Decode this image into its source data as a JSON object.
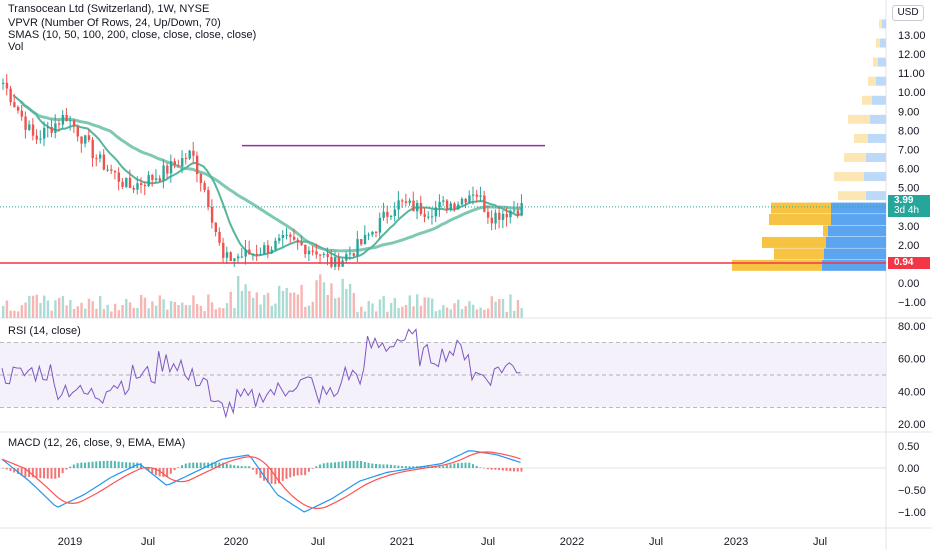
{
  "header": {
    "title": "Transocean Ltd (Switzerland), 1W, NYSE",
    "indicator_vpvr": "VPVR (Number Of Rows, 24, Up/Down, 70)",
    "indicator_smas": "SMAS (10, 50, 100, 200, close, close, close, close)",
    "indicator_vol": "Vol",
    "currency": "USD"
  },
  "price_axis": {
    "ticks": [
      "13.00",
      "12.00",
      "11.00",
      "10.00",
      "9.00",
      "8.00",
      "7.00",
      "6.00",
      "5.00",
      "4.00",
      "3.00",
      "2.00",
      "1.00",
      "0.00",
      "−1.00"
    ],
    "current_price": "3.99",
    "countdown": "3d 4h",
    "support_price": "0.94"
  },
  "rsi": {
    "label": "RSI (14, close)",
    "ticks": [
      "80.00",
      "60.00",
      "40.00",
      "20.00"
    ]
  },
  "macd": {
    "label": "MACD (12, 26, close, 9, EMA, EMA)",
    "ticks": [
      "0.50",
      "0.00",
      "−0.50",
      "−1.00"
    ]
  },
  "time_axis": {
    "labels": [
      "2019",
      "Jul",
      "2020",
      "Jul",
      "2021",
      "Jul",
      "2022",
      "Jul",
      "2023",
      "Jul"
    ]
  },
  "colors": {
    "up": "#26a69a",
    "down": "#ef5350",
    "sma_fast": "#58b59d",
    "sma_slow": "#7ec8b4",
    "resistance": "#9c27b0",
    "support": "#f23645",
    "rsi_line": "#7e57c2",
    "macd_line": "#2196f3",
    "signal_line": "#ff5252",
    "vpvr_up": "#5ba4f0",
    "vpvr_down": "#f6c342"
  },
  "chart_data": {
    "type": "line",
    "weekly_close_approx": [
      {
        "x": "2019-01",
        "y": 10.5
      },
      {
        "x": "2019-03",
        "y": 7.5
      },
      {
        "x": "2019-05",
        "y": 8.8
      },
      {
        "x": "2019-07",
        "y": 6.5
      },
      {
        "x": "2019-09",
        "y": 5.0
      },
      {
        "x": "2019-11",
        "y": 5.7
      },
      {
        "x": "2020-01",
        "y": 6.8
      },
      {
        "x": "2020-02",
        "y": 4.5
      },
      {
        "x": "2020-03",
        "y": 1.2
      },
      {
        "x": "2020-05",
        "y": 1.6
      },
      {
        "x": "2020-07",
        "y": 2.2
      },
      {
        "x": "2020-09",
        "y": 1.7
      },
      {
        "x": "2020-10",
        "y": 0.9
      },
      {
        "x": "2020-12",
        "y": 2.2
      },
      {
        "x": "2021-02",
        "y": 4.2
      },
      {
        "x": "2021-04",
        "y": 3.8
      },
      {
        "x": "2021-06",
        "y": 4.3
      },
      {
        "x": "2021-07",
        "y": 4.9
      },
      {
        "x": "2021-08",
        "y": 3.5
      },
      {
        "x": "2021-10",
        "y": 3.99
      }
    ],
    "resistance_level": 7.2,
    "support_level": 0.94,
    "ylim": [
      -1.5,
      13.5
    ],
    "rsi_range": [
      20,
      80
    ],
    "macd_range": [
      -1.3,
      0.7
    ]
  }
}
